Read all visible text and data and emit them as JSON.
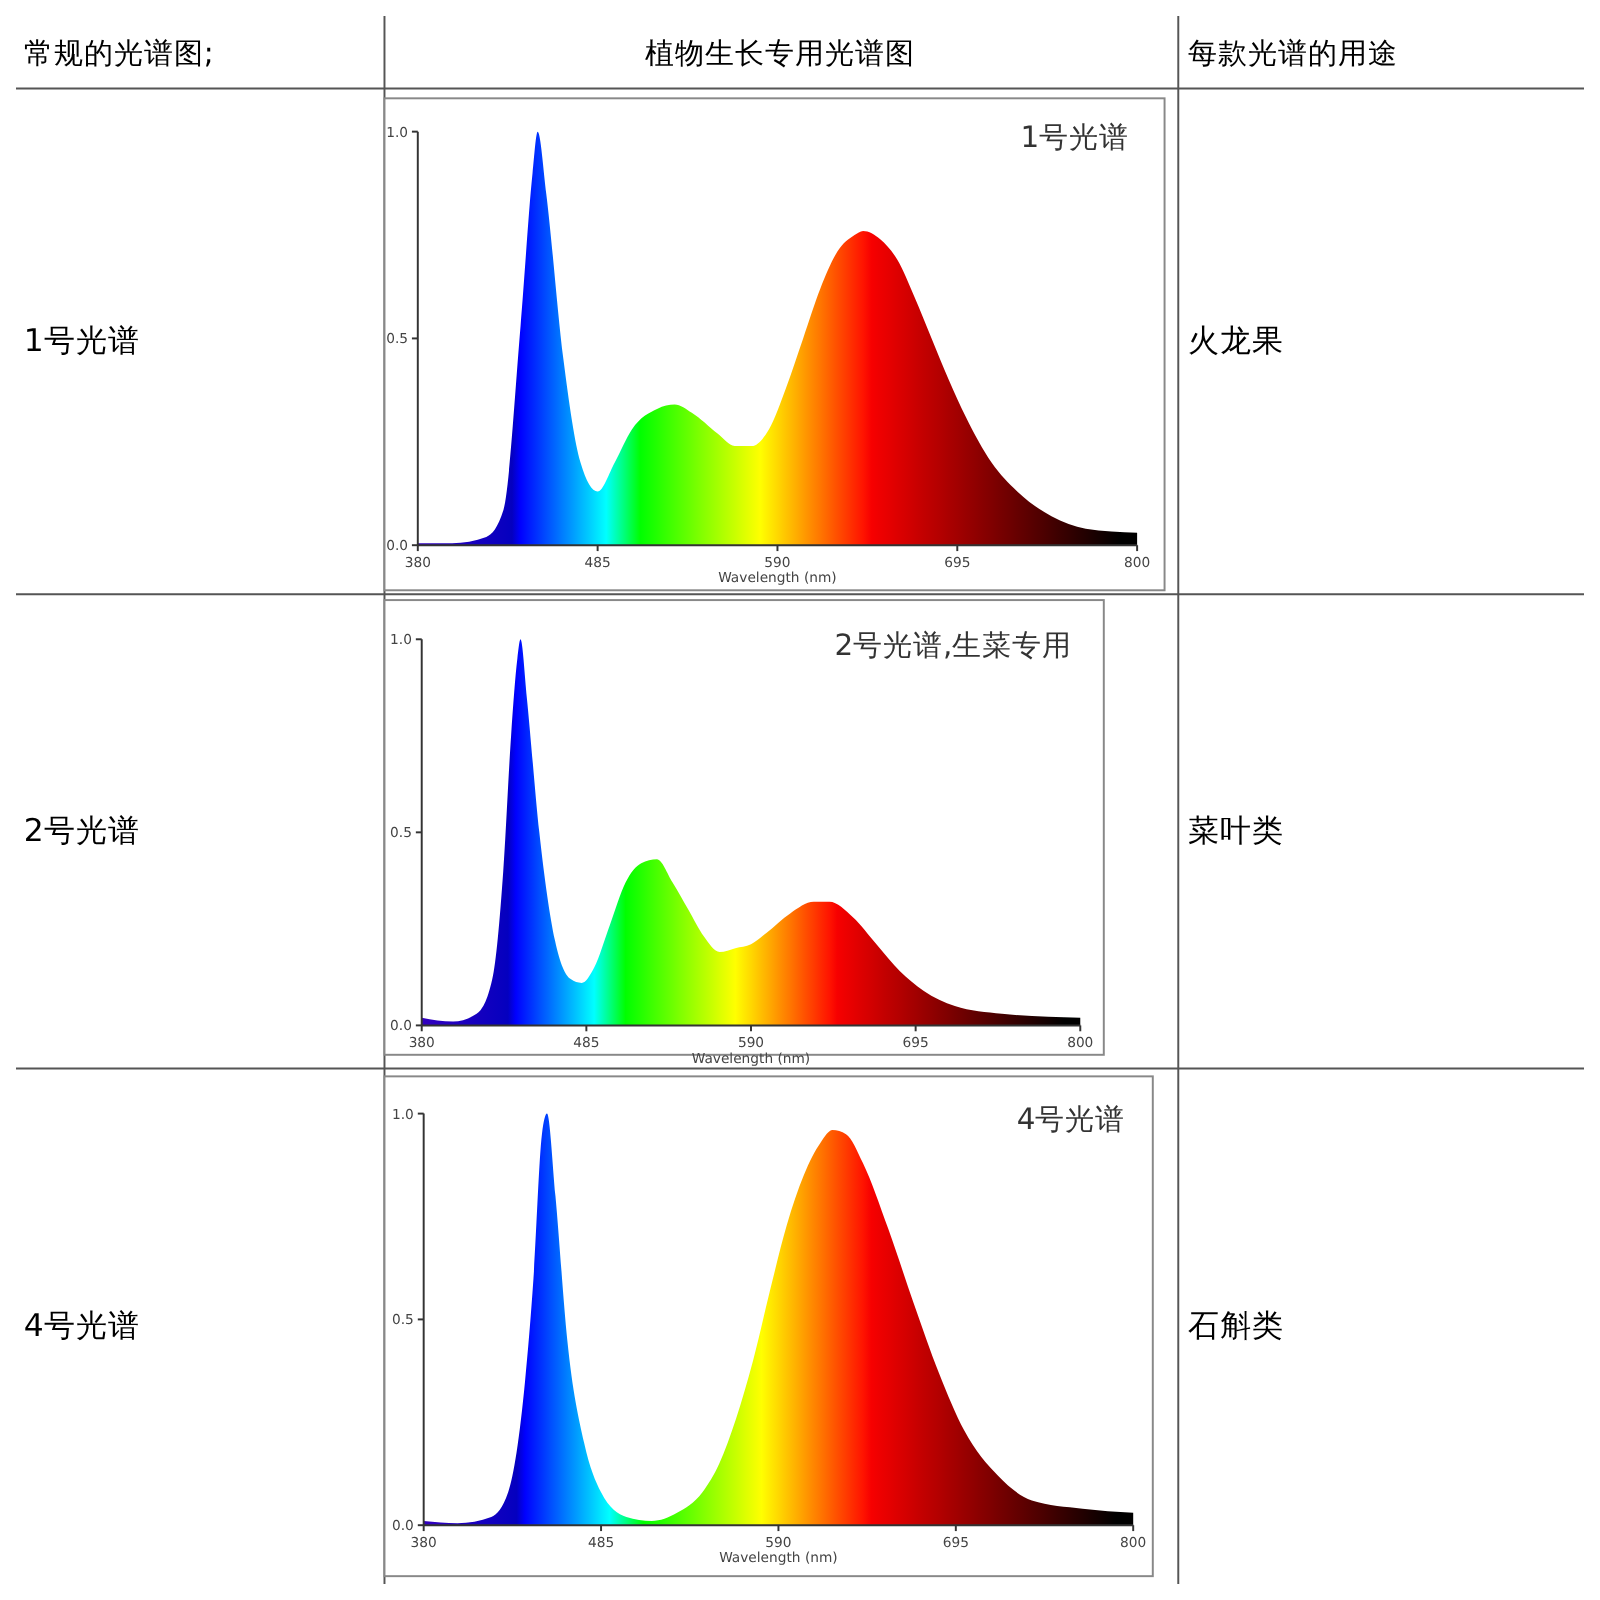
{
  "chart_data": [
    {
      "type": "area",
      "title": "1号光谱",
      "xlabel": "Wavelength (nm)",
      "annotations": [
        "常规的光谱图;",
        "植物生长专用光谱图",
        "每款光谱的用途",
        "1号光谱",
        "火龙果"
      ],
      "xlim": [
        380,
        800
      ],
      "xticks": [
        380,
        485,
        590,
        695,
        800
      ],
      "ylim": [
        0,
        1
      ],
      "yticks": [
        {
          "value": 0,
          "label": "0.0"
        },
        {
          "value": 0.5,
          "label": "0.5"
        },
        {
          "value": 1,
          "label": "1.0"
        }
      ],
      "x": [
        380,
        400,
        420,
        430,
        440,
        447,
        450,
        455,
        465,
        475,
        485,
        495,
        505,
        520,
        530,
        540,
        555,
        565,
        575,
        585,
        595,
        605,
        615,
        625,
        635,
        640,
        650,
        660,
        670,
        680,
        690,
        700,
        715,
        730,
        750,
        770,
        800
      ],
      "values": [
        0.005,
        0.005,
        0.02,
        0.085,
        0.53,
        0.9,
        1.0,
        0.85,
        0.45,
        0.2,
        0.13,
        0.2,
        0.28,
        0.33,
        0.34,
        0.32,
        0.27,
        0.24,
        0.24,
        0.28,
        0.38,
        0.5,
        0.62,
        0.71,
        0.75,
        0.76,
        0.74,
        0.69,
        0.6,
        0.5,
        0.4,
        0.31,
        0.2,
        0.13,
        0.07,
        0.04,
        0.03
      ]
    },
    {
      "type": "area",
      "title": "2号光谱,生菜专用",
      "xlabel": "Wavelength (nm)",
      "annotations": [
        "2号光谱",
        "菜叶类"
      ],
      "xlim": [
        380,
        800
      ],
      "xticks": [
        380,
        485,
        590,
        695,
        800
      ],
      "ylim": [
        0,
        1
      ],
      "yticks": [
        {
          "value": 0,
          "label": "0.0"
        },
        {
          "value": 0.5,
          "label": "0.5"
        },
        {
          "value": 1,
          "label": "1.0"
        }
      ],
      "x": [
        380,
        400,
        415,
        425,
        432,
        437,
        441,
        443,
        447,
        455,
        465,
        475,
        482,
        490,
        500,
        510,
        520,
        530,
        540,
        550,
        560,
        570,
        580,
        590,
        600,
        615,
        630,
        640,
        655,
        670,
        685,
        700,
        720,
        750,
        800
      ],
      "values": [
        0.02,
        0.01,
        0.03,
        0.12,
        0.4,
        0.75,
        0.95,
        1.0,
        0.85,
        0.5,
        0.22,
        0.12,
        0.11,
        0.15,
        0.26,
        0.37,
        0.42,
        0.43,
        0.37,
        0.3,
        0.23,
        0.19,
        0.2,
        0.21,
        0.24,
        0.29,
        0.32,
        0.32,
        0.28,
        0.21,
        0.14,
        0.09,
        0.05,
        0.03,
        0.02
      ]
    },
    {
      "type": "area",
      "title": "4号光谱",
      "xlabel": "Wavelength (nm)",
      "annotations": [
        "4号光谱",
        "石斛类"
      ],
      "xlim": [
        380,
        800
      ],
      "xticks": [
        380,
        485,
        590,
        695,
        800
      ],
      "ylim": [
        0,
        1
      ],
      "yticks": [
        {
          "value": 0,
          "label": "0.0"
        },
        {
          "value": 0.5,
          "label": "0.5"
        },
        {
          "value": 1,
          "label": "1.0"
        }
      ],
      "x": [
        380,
        400,
        420,
        430,
        440,
        445,
        450,
        453,
        458,
        465,
        475,
        485,
        500,
        515,
        530,
        545,
        555,
        565,
        575,
        585,
        595,
        605,
        615,
        622,
        630,
        640,
        655,
        670,
        685,
        700,
        720,
        740,
        770,
        800
      ],
      "values": [
        0.01,
        0.005,
        0.02,
        0.08,
        0.35,
        0.6,
        0.95,
        1.0,
        0.8,
        0.45,
        0.2,
        0.08,
        0.02,
        0.01,
        0.03,
        0.08,
        0.15,
        0.26,
        0.4,
        0.57,
        0.73,
        0.85,
        0.93,
        0.96,
        0.95,
        0.88,
        0.72,
        0.54,
        0.37,
        0.23,
        0.12,
        0.06,
        0.04,
        0.03
      ]
    }
  ]
}
